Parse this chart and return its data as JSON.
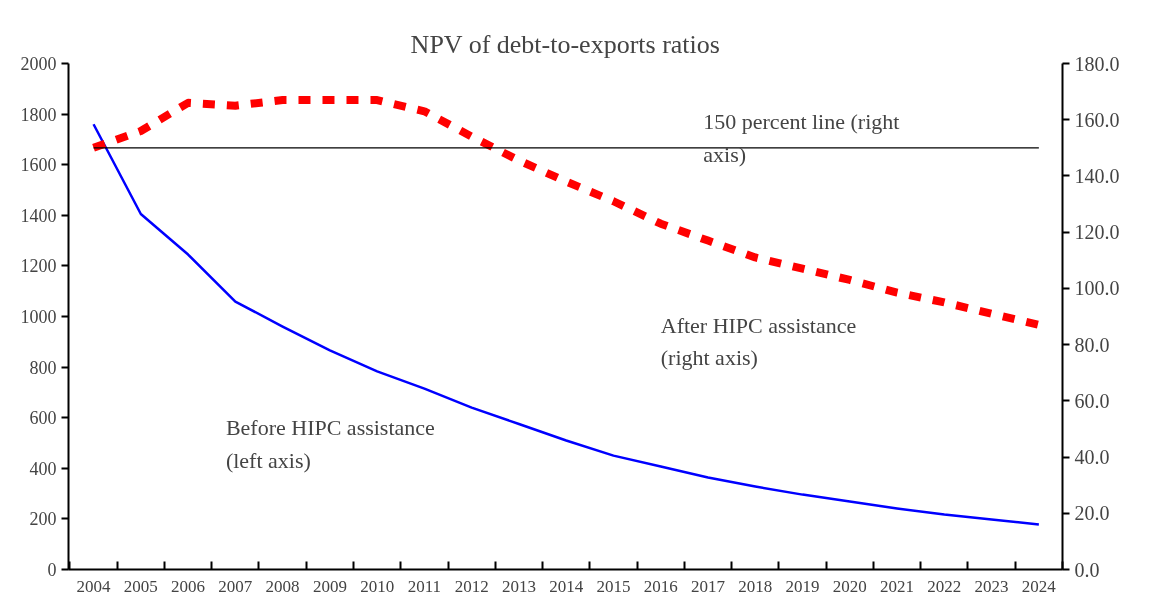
{
  "chart_data": {
    "type": "line",
    "title": "NPV of debt-to-exports ratios",
    "categories": [
      "2004",
      "2005",
      "2006",
      "2007",
      "2008",
      "2009",
      "2010",
      "2011",
      "2012",
      "2013",
      "2014",
      "2015",
      "2016",
      "2017",
      "2018",
      "2019",
      "2020",
      "2021",
      "2022",
      "2023",
      "2024"
    ],
    "series": [
      {
        "name": "Before HIPC assistance\n(left axis)",
        "color": "#0000ff",
        "line_style": "solid",
        "values": [
          1760,
          1405,
          1245,
          1059,
          960,
          866,
          783,
          715,
          640,
          575,
          510,
          450,
          407,
          364,
          328,
          296,
          269,
          241,
          217,
          198,
          178
        ]
      },
      {
        "name": "After HIPC assistance\n(right axis)",
        "color": "#ff0000",
        "line_style": "dashed",
        "axis": "y2",
        "values": [
          150,
          156,
          166,
          165,
          167,
          167,
          167,
          163,
          154,
          145.5,
          138,
          131,
          123,
          117,
          111,
          107,
          103,
          98.5,
          95,
          91,
          87
        ]
      }
    ],
    "ylim": [
      0,
      2000
    ],
    "yticks": [
      0,
      200,
      400,
      600,
      800,
      1000,
      1200,
      1400,
      1600,
      1800,
      2000
    ],
    "y2lim": [
      0,
      180
    ],
    "y2ticks": [
      {
        "value": 0,
        "label": "0.0"
      },
      {
        "value": 20,
        "label": "20.0"
      },
      {
        "value": 40,
        "label": "40.0"
      },
      {
        "value": 60,
        "label": "60.0"
      },
      {
        "value": 80,
        "label": "80.0"
      },
      {
        "value": 100,
        "label": "100.0"
      },
      {
        "value": 120,
        "label": "120.0"
      },
      {
        "value": 140,
        "label": "140.0"
      },
      {
        "value": 160,
        "label": "160.0"
      },
      {
        "value": 180,
        "label": "180.0"
      }
    ],
    "ref_lines": [
      {
        "axis": "y2",
        "value": 150,
        "label": "150 percent line (right\naxis)",
        "color": "#000000"
      }
    ],
    "grid": false
  }
}
